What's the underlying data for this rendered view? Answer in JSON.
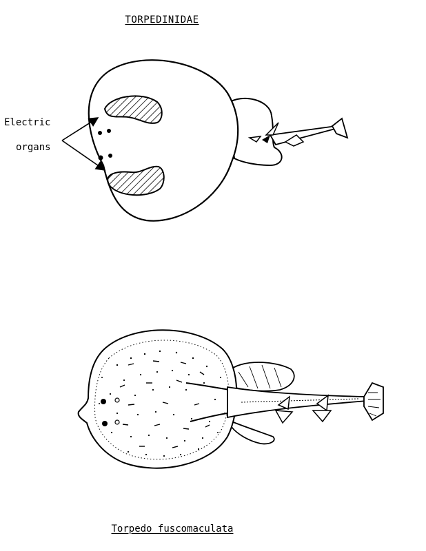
{
  "family_title": "TORPEDINIDAE",
  "annotation": {
    "line1": "Electric",
    "line2": "organs"
  },
  "species_caption": "Torpedo fuscomaculata",
  "colors": {
    "ink": "#000000",
    "paper": "#ffffff"
  }
}
